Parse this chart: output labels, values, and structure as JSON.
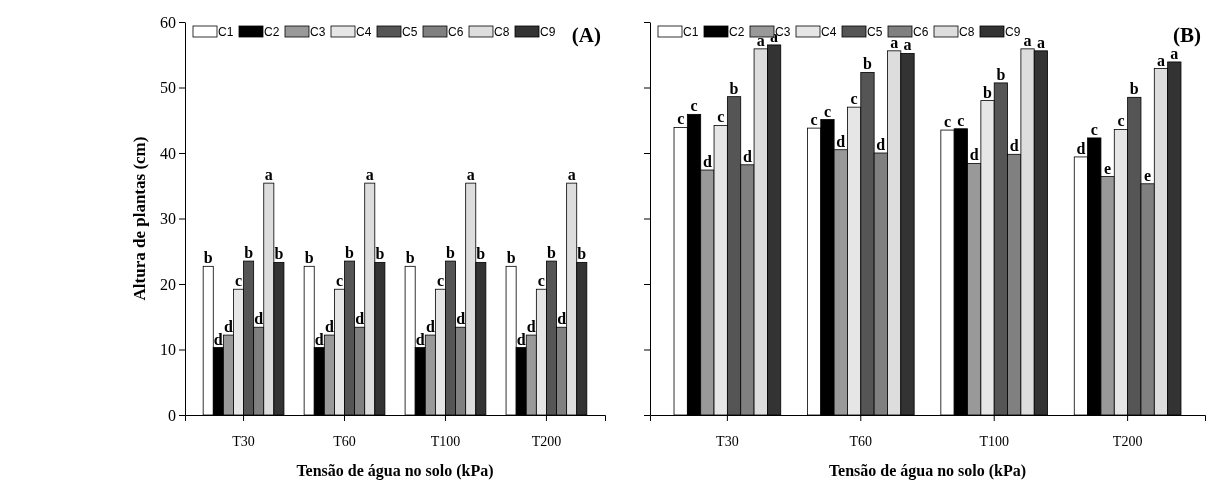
{
  "chart_data": [
    {
      "type": "bar",
      "title": "(A)",
      "xlabel": "Tensão de água no solo (kPa)",
      "ylabel": "Altura de plantas (cm)",
      "categories": [
        "T30",
        "T60",
        "T100",
        "T200"
      ],
      "ylim": [
        0,
        60
      ],
      "yticks": [
        0,
        10,
        20,
        30,
        40,
        50,
        60
      ],
      "legend": "top",
      "grid": false,
      "series": [
        {
          "name": "C1",
          "color": "#ffffff",
          "values": [
            22.7,
            22.7,
            22.7,
            22.7
          ],
          "value_labels": [
            "b",
            "b",
            "b",
            "b"
          ]
        },
        {
          "name": "C2",
          "color": "#000000",
          "values": [
            10.3,
            10.3,
            10.3,
            10.3
          ],
          "value_labels": [
            "d",
            "d",
            "d",
            "d"
          ]
        },
        {
          "name": "C3",
          "color": "#999999",
          "values": [
            12.2,
            12.2,
            12.2,
            12.2
          ],
          "value_labels": [
            "d",
            "d",
            "d",
            "d"
          ]
        },
        {
          "name": "C4",
          "color": "#e6e6e6",
          "values": [
            19.2,
            19.2,
            19.2,
            19.2
          ],
          "value_labels": [
            "c",
            "c",
            "c",
            "c"
          ]
        },
        {
          "name": "C5",
          "color": "#555555",
          "values": [
            23.5,
            23.5,
            23.5,
            23.5
          ],
          "value_labels": [
            "b",
            "b",
            "b",
            "b"
          ]
        },
        {
          "name": "C6",
          "color": "#808080",
          "values": [
            13.4,
            13.4,
            13.4,
            13.4
          ],
          "value_labels": [
            "d",
            "d",
            "d",
            "d"
          ]
        },
        {
          "name": "C8",
          "color": "#dddddd",
          "values": [
            35.4,
            35.4,
            35.4,
            35.4
          ],
          "value_labels": [
            "a",
            "a",
            "a",
            "a"
          ]
        },
        {
          "name": "C9",
          "color": "#333333",
          "values": [
            23.3,
            23.3,
            23.3,
            23.3
          ],
          "value_labels": [
            "b",
            "b",
            "b",
            "b"
          ]
        }
      ]
    },
    {
      "type": "bar",
      "title": "(B)",
      "xlabel": "Tensão de água no solo (kPa)",
      "categories": [
        "T30",
        "T60",
        "T100",
        "T200"
      ],
      "ylim": [
        0,
        60
      ],
      "yticks": [
        0,
        10,
        20,
        30,
        40,
        50,
        60
      ],
      "tick_labels": "x",
      "legend": "top",
      "grid": false,
      "series": [
        {
          "name": "C1",
          "color": "#ffffff",
          "values": [
            43.9,
            43.8,
            43.5,
            39.4
          ],
          "value_labels": [
            "c",
            "c",
            "c",
            "d"
          ]
        },
        {
          "name": "C2",
          "color": "#000000",
          "values": [
            45.9,
            45.1,
            43.7,
            42.3
          ],
          "value_labels": [
            "c",
            "c",
            "c",
            "c"
          ]
        },
        {
          "name": "C3",
          "color": "#999999",
          "values": [
            37.4,
            40.5,
            38.4,
            36.4
          ],
          "value_labels": [
            "d",
            "d",
            "d",
            "e"
          ]
        },
        {
          "name": "C4",
          "color": "#e6e6e6",
          "values": [
            44.2,
            47.0,
            48.0,
            43.6
          ],
          "value_labels": [
            "c",
            "c",
            "b",
            "c"
          ]
        },
        {
          "name": "C5",
          "color": "#555555",
          "values": [
            48.6,
            52.3,
            50.7,
            48.5
          ],
          "value_labels": [
            "b",
            "b",
            "b",
            "b"
          ]
        },
        {
          "name": "C6",
          "color": "#808080",
          "values": [
            38.2,
            40.0,
            39.8,
            35.3
          ],
          "value_labels": [
            "d",
            "d",
            "d",
            "e"
          ]
        },
        {
          "name": "C8",
          "color": "#dddddd",
          "values": [
            55.9,
            55.6,
            55.9,
            52.9
          ],
          "value_labels": [
            "a",
            "a",
            "a",
            "a"
          ]
        },
        {
          "name": "C9",
          "color": "#333333",
          "values": [
            56.5,
            55.2,
            55.6,
            53.9
          ],
          "value_labels": [
            "a",
            "a",
            "a",
            "a"
          ]
        }
      ]
    }
  ]
}
